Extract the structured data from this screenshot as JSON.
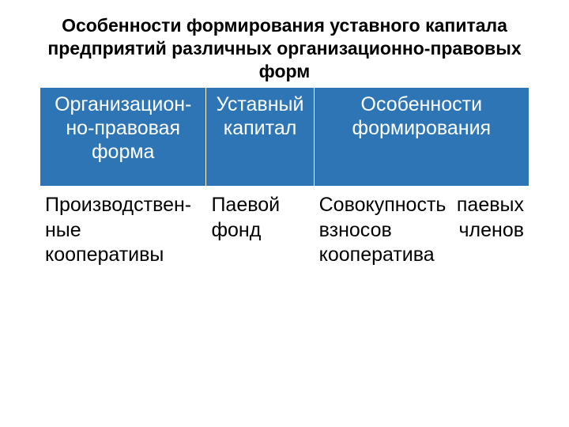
{
  "title": "Особенности формирования уставного капитала предприятий различных организационно-правовых форм",
  "title_fontsize": 23,
  "title_color": "#000000",
  "table": {
    "header_bg": "#2e75b6",
    "header_color": "#ffffff",
    "header_fontsize": 25,
    "body_bg": "#ffffff",
    "body_color": "#000000",
    "body_fontsize": 25,
    "border_color": "#ffffff",
    "col_widths_pct": [
      34,
      22,
      44
    ],
    "columns": [
      "Организацион-но-правовая форма",
      "Уставный капитал",
      "Особенности формирования"
    ],
    "rows": [
      {
        "c1": "Производствен-ные кооперативы",
        "c2": "Паевой фонд",
        "c3": "Совокупность паевых взносов членов кооператива"
      }
    ]
  }
}
